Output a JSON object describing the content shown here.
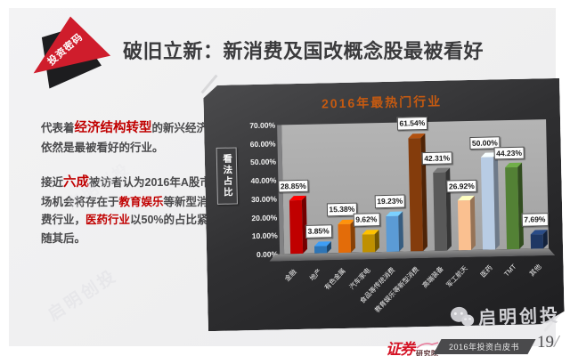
{
  "ribbon": {
    "label": "投资密码"
  },
  "header": {
    "title": "破旧立新：新消费及国改概念股最被看好"
  },
  "body": {
    "para1": {
      "s0": "代表着",
      "s1": "经济结构转型",
      "s2": "的新兴经济依然是最被看好的行业。"
    },
    "para2": {
      "s0": "接近",
      "s1": "六成",
      "s2": "被访者认为2016年A股市场机会将存在于",
      "s3": "教育娱乐",
      "s4": "等新型消费行业，",
      "s5": "医药行业",
      "s6": "以50%的占比紧随其后。"
    }
  },
  "chart_data": {
    "type": "bar",
    "title": "2016年最热门行业",
    "ylabel": "看法占比",
    "xlabel": "",
    "ylim": [
      0,
      70
    ],
    "grid": false,
    "legend": "none",
    "yticks": [
      "70.00%",
      "60.00%",
      "50.00%",
      "40.00%",
      "30.00%",
      "20.00%",
      "10.00%",
      "0.00%"
    ],
    "categories": [
      "金融",
      "地产",
      "有色金属",
      "汽车家电",
      "食品等传统消费",
      "教育娱乐等新型消费",
      "高端装备",
      "军工航天",
      "医药",
      "TMT",
      "其他"
    ],
    "values": [
      28.85,
      3.85,
      15.38,
      9.62,
      19.23,
      61.54,
      42.31,
      26.92,
      50.0,
      44.23,
      7.69
    ],
    "labels": [
      "28.85%",
      "3.85%",
      "15.38%",
      "9.62%",
      "19.23%",
      "61.54%",
      "42.31%",
      "26.92%",
      "50.00%",
      "44.23%",
      "7.69%"
    ],
    "bar_colors": [
      "#c00000",
      "#2e75b6",
      "#e36c09",
      "#bf9000",
      "#5b9bd5",
      "#843c0c",
      "#595959",
      "#fac090",
      "#b8cce4",
      "#538135",
      "#1f3864"
    ],
    "title_color": "#c55a11"
  },
  "footer": {
    "logo_main": "证券",
    "logo_sub": "研究院",
    "band_text": "2016年投资白皮书",
    "page": "19",
    "page_slash": "/"
  },
  "watermark": {
    "text": "启明创投"
  },
  "colors": {
    "accent_red": "#c00000",
    "ribbon_red": "#cf1d2c",
    "panel_dark": "#2b2b2d"
  }
}
